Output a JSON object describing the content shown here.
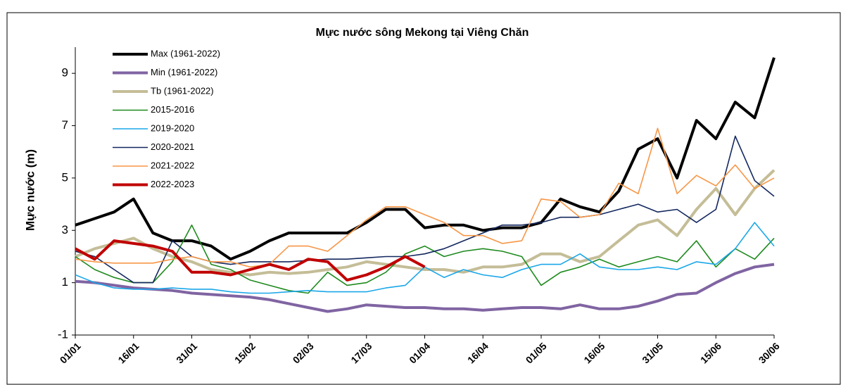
{
  "chart_data": {
    "type": "line",
    "title": "Mực nước sông Mekong tại Viêng Chăn",
    "y_label": "Mực nước (m)",
    "categories": [
      "01/01",
      null,
      null,
      "16/01",
      null,
      null,
      "31/01",
      null,
      null,
      "15/02",
      null,
      null,
      "02/03",
      null,
      null,
      "17/03",
      null,
      null,
      "01/04",
      null,
      null,
      "16/04",
      null,
      null,
      "01/05",
      null,
      null,
      "16/05",
      null,
      null,
      "31/05",
      null,
      null,
      "15/06",
      null,
      null,
      "30/06"
    ],
    "ylim": [
      -1,
      10
    ],
    "yticks": [
      -1,
      1,
      3,
      5,
      7,
      9
    ],
    "legend": "top-left",
    "series": [
      {
        "name": "Max (1961-2022)",
        "color": "#000000",
        "values": [
          3.2,
          3.45,
          3.7,
          4.2,
          2.9,
          2.6,
          2.6,
          2.4,
          1.9,
          2.2,
          2.6,
          2.9,
          2.9,
          2.9,
          2.9,
          3.3,
          3.8,
          3.8,
          3.1,
          3.2,
          3.2,
          3.0,
          3.1,
          3.1,
          3.3,
          4.2,
          3.9,
          3.7,
          4.5,
          6.1,
          6.5,
          5.0,
          7.2,
          6.5,
          7.9,
          7.3,
          9.6
        ]
      },
      {
        "name": "Min (1961-2022)",
        "color": "#8064a2",
        "values": [
          1.05,
          1.0,
          0.9,
          0.8,
          0.75,
          0.7,
          0.6,
          0.55,
          0.5,
          0.45,
          0.35,
          0.2,
          0.05,
          -0.1,
          0.0,
          0.15,
          0.1,
          0.05,
          0.05,
          0.0,
          0.0,
          -0.05,
          0.0,
          0.05,
          0.05,
          0.0,
          0.15,
          0.0,
          0.0,
          0.1,
          0.3,
          0.55,
          0.6,
          1.0,
          1.35,
          1.6,
          1.7
        ]
      },
      {
        "name": "Tb (1961-2022)",
        "color": "#c4bd97",
        "values": [
          2.0,
          2.3,
          2.5,
          2.7,
          2.3,
          2.0,
          1.8,
          1.5,
          1.4,
          1.3,
          1.4,
          1.35,
          1.4,
          1.5,
          1.6,
          1.8,
          1.7,
          1.6,
          1.5,
          1.5,
          1.4,
          1.6,
          1.6,
          1.7,
          2.1,
          2.1,
          1.8,
          2.0,
          2.6,
          3.2,
          3.4,
          2.8,
          3.8,
          4.6,
          3.6,
          4.6,
          5.3
        ]
      },
      {
        "name": "2015-2016",
        "color": "#1e8a1e",
        "values": [
          2.0,
          1.5,
          1.2,
          1.0,
          1.0,
          1.8,
          3.2,
          1.7,
          1.5,
          1.1,
          0.9,
          0.7,
          0.6,
          1.4,
          0.9,
          1.0,
          1.4,
          2.1,
          2.4,
          2.0,
          2.2,
          2.3,
          2.2,
          2.0,
          0.9,
          1.4,
          1.6,
          1.9,
          1.6,
          1.8,
          2.0,
          1.8,
          2.6,
          1.6,
          2.3,
          1.9,
          2.7
        ]
      },
      {
        "name": "2019-2020",
        "color": "#1aa7e8",
        "values": [
          1.3,
          1.0,
          0.8,
          0.75,
          0.75,
          0.8,
          0.75,
          0.75,
          0.65,
          0.6,
          0.6,
          0.65,
          0.7,
          0.65,
          0.65,
          0.65,
          0.8,
          0.9,
          1.6,
          1.2,
          1.5,
          1.3,
          1.2,
          1.5,
          1.7,
          1.7,
          2.1,
          1.6,
          1.5,
          1.5,
          1.6,
          1.5,
          1.8,
          1.7,
          2.3,
          3.3,
          2.4
        ]
      },
      {
        "name": "2020-2021",
        "color": "#14285f",
        "values": [
          2.2,
          2.0,
          1.5,
          1.0,
          1.0,
          2.6,
          2.0,
          1.8,
          1.7,
          1.8,
          1.8,
          1.8,
          1.85,
          1.9,
          1.9,
          1.95,
          2.0,
          2.0,
          2.1,
          2.3,
          2.6,
          2.9,
          3.2,
          3.2,
          3.3,
          3.5,
          3.5,
          3.6,
          3.8,
          4.0,
          3.7,
          3.8,
          3.3,
          3.8,
          6.6,
          4.9,
          4.3
        ]
      },
      {
        "name": "2021-2022",
        "color": "#f79646",
        "values": [
          1.9,
          1.8,
          1.75,
          1.75,
          1.75,
          1.9,
          2.0,
          1.8,
          1.8,
          1.6,
          1.7,
          2.4,
          2.4,
          2.2,
          2.8,
          3.4,
          3.9,
          3.9,
          3.6,
          3.3,
          2.8,
          2.8,
          2.5,
          2.6,
          4.2,
          4.1,
          3.5,
          3.6,
          4.8,
          4.4,
          6.9,
          4.4,
          5.1,
          4.7,
          5.5,
          4.6,
          5.0
        ]
      },
      {
        "name": "2022-2023",
        "color": "#c00000",
        "values": [
          2.3,
          1.9,
          2.6,
          2.5,
          2.4,
          2.2,
          1.4,
          1.4,
          1.3,
          1.5,
          1.7,
          1.5,
          1.9,
          1.8,
          1.1,
          1.3,
          1.6,
          2.0,
          1.6,
          null,
          null,
          null,
          null,
          null,
          null,
          null,
          null,
          null,
          null,
          null,
          null,
          null,
          null,
          null,
          null,
          null,
          null
        ]
      }
    ]
  }
}
